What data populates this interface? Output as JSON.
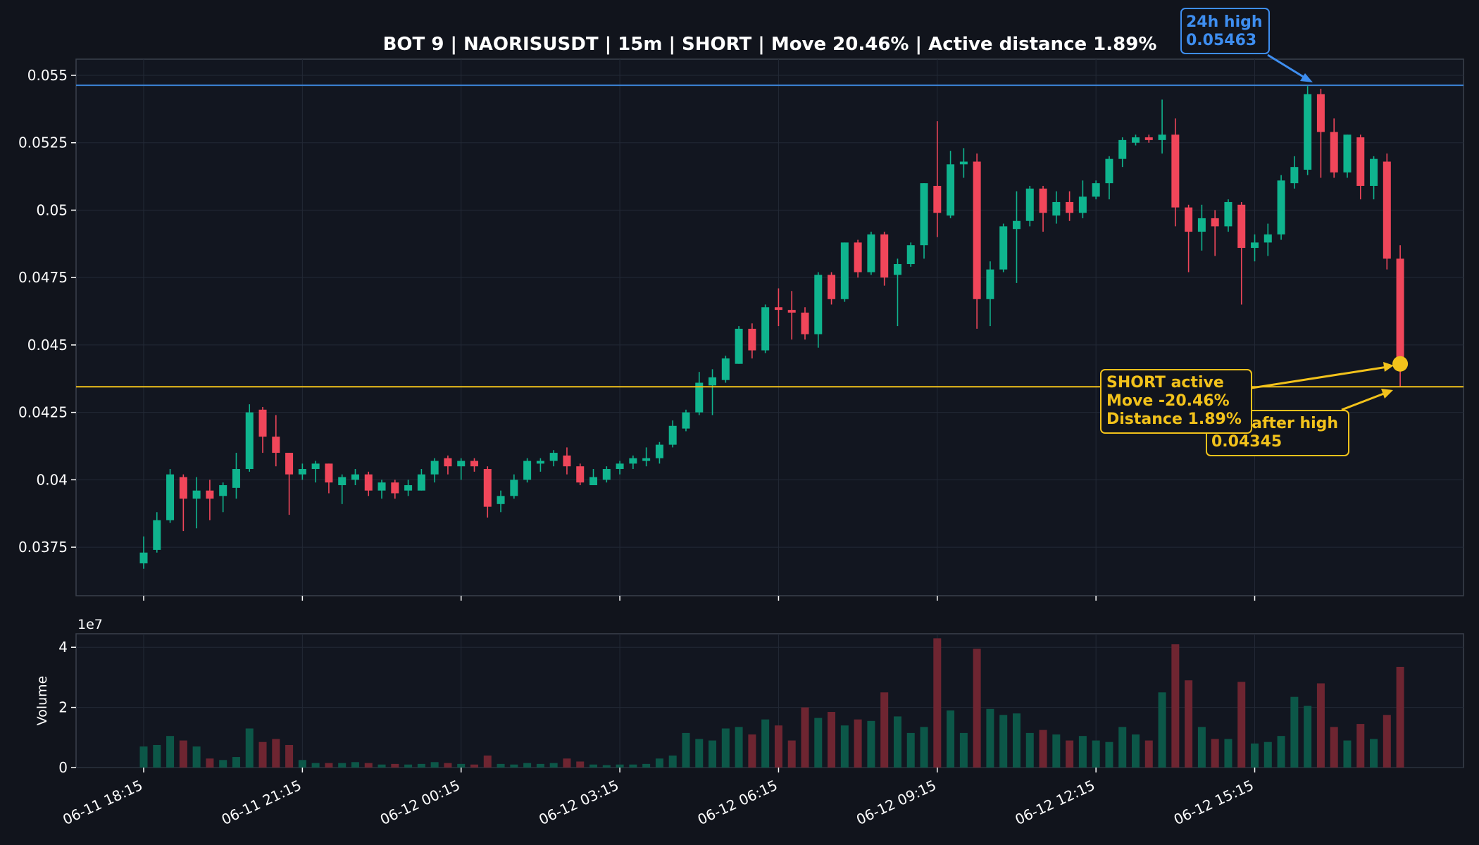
{
  "title": "BOT 9 | NAORISUSDT | 15m | SHORT | Move 20.46% | Active distance 1.89%",
  "colors": {
    "background": "#11141c",
    "plot_bg": "#121620",
    "grid": "#232936",
    "axis": "#3a404c",
    "text": "#ffffff",
    "bull": "#0fb48e",
    "bear": "#f0465a",
    "bull_volume": "#0c5748",
    "bear_volume": "#6e2531",
    "high_line": "#3b82d4",
    "high_text": "#3e8ef0",
    "active": "#f2c21b"
  },
  "annotations": {
    "high": {
      "line1": "24h high",
      "line2": "0.05463"
    },
    "low": {
      "line1": "Low after high",
      "line2": "0.04345"
    },
    "active": {
      "line1": "SHORT active",
      "line2": "Move -20.46%",
      "line3": "Distance 1.89%"
    }
  },
  "chart_data": {
    "type": "candlestick",
    "symbol": "NAORISUSDT",
    "interval": "15m",
    "y_ticks": [
      "0.0375",
      "0.04",
      "0.0425",
      "0.045",
      "0.0475",
      "0.05",
      "0.0525",
      "0.055"
    ],
    "ylim": [
      0.0357,
      0.0556
    ],
    "x_ticks": [
      "06-11 18:15",
      "06-11 21:15",
      "06-12 00:15",
      "06-12 03:15",
      "06-12 06:15",
      "06-12 09:15",
      "06-12 12:15",
      "06-12 15:15"
    ],
    "volume_ylabel": "Volume",
    "volume_scale_label": "1e7",
    "volume_ticks": [
      "0",
      "2",
      "4"
    ],
    "volume_ylim": [
      0,
      4.45
    ],
    "volume_unit": 10000000,
    "high_level": 0.05463,
    "low_after_high": 0.04345,
    "current_price": 0.0443,
    "candles": [
      [
        0.0369,
        0.0373,
        0.0379,
        0.0367,
        0.7
      ],
      [
        0.0374,
        0.0385,
        0.0388,
        0.0373,
        0.75
      ],
      [
        0.0385,
        0.0402,
        0.0404,
        0.0384,
        1.05
      ],
      [
        0.0401,
        0.0393,
        0.0402,
        0.0381,
        0.9
      ],
      [
        0.0393,
        0.0396,
        0.0401,
        0.0382,
        0.7
      ],
      [
        0.0396,
        0.0393,
        0.04,
        0.0385,
        0.3
      ],
      [
        0.0394,
        0.0398,
        0.0399,
        0.0388,
        0.25
      ],
      [
        0.0397,
        0.0404,
        0.041,
        0.0393,
        0.35
      ],
      [
        0.0404,
        0.0425,
        0.0428,
        0.0403,
        1.3
      ],
      [
        0.0426,
        0.0416,
        0.0427,
        0.041,
        0.85
      ],
      [
        0.0416,
        0.041,
        0.0424,
        0.0405,
        0.95
      ],
      [
        0.041,
        0.0402,
        0.041,
        0.0387,
        0.75
      ],
      [
        0.0402,
        0.0404,
        0.0406,
        0.04,
        0.25
      ],
      [
        0.0404,
        0.0406,
        0.0407,
        0.0399,
        0.15
      ],
      [
        0.0406,
        0.0399,
        0.0406,
        0.0395,
        0.15
      ],
      [
        0.0398,
        0.0401,
        0.0402,
        0.0391,
        0.15
      ],
      [
        0.04,
        0.0402,
        0.0404,
        0.0398,
        0.18
      ],
      [
        0.0402,
        0.0396,
        0.0403,
        0.0394,
        0.15
      ],
      [
        0.0396,
        0.0399,
        0.04,
        0.0393,
        0.1
      ],
      [
        0.0399,
        0.0395,
        0.04,
        0.0393,
        0.12
      ],
      [
        0.0396,
        0.0398,
        0.04,
        0.0394,
        0.1
      ],
      [
        0.0396,
        0.0402,
        0.0404,
        0.0396,
        0.12
      ],
      [
        0.0402,
        0.0407,
        0.0408,
        0.0399,
        0.18
      ],
      [
        0.0408,
        0.0405,
        0.0409,
        0.0402,
        0.15
      ],
      [
        0.0405,
        0.0407,
        0.0408,
        0.04,
        0.12
      ],
      [
        0.0407,
        0.0405,
        0.0408,
        0.0403,
        0.1
      ],
      [
        0.0404,
        0.039,
        0.0405,
        0.0386,
        0.4
      ],
      [
        0.0391,
        0.0394,
        0.0396,
        0.0388,
        0.12
      ],
      [
        0.0394,
        0.04,
        0.0402,
        0.0393,
        0.1
      ],
      [
        0.04,
        0.0407,
        0.0408,
        0.0399,
        0.15
      ],
      [
        0.0406,
        0.0407,
        0.0408,
        0.0403,
        0.12
      ],
      [
        0.0407,
        0.041,
        0.0411,
        0.0405,
        0.15
      ],
      [
        0.0409,
        0.0405,
        0.0412,
        0.0402,
        0.3
      ],
      [
        0.0405,
        0.0399,
        0.0406,
        0.0398,
        0.2
      ],
      [
        0.0398,
        0.0401,
        0.0404,
        0.0398,
        0.1
      ],
      [
        0.04,
        0.0404,
        0.0405,
        0.0399,
        0.08
      ],
      [
        0.0404,
        0.0406,
        0.0407,
        0.0402,
        0.1
      ],
      [
        0.0406,
        0.0408,
        0.0409,
        0.0404,
        0.1
      ],
      [
        0.0407,
        0.0408,
        0.0412,
        0.0405,
        0.12
      ],
      [
        0.0408,
        0.0413,
        0.0414,
        0.0406,
        0.3
      ],
      [
        0.0413,
        0.042,
        0.0422,
        0.0412,
        0.4
      ],
      [
        0.0419,
        0.0425,
        0.0426,
        0.0418,
        1.15
      ],
      [
        0.0425,
        0.0436,
        0.044,
        0.0424,
        0.95
      ],
      [
        0.0435,
        0.0438,
        0.0441,
        0.0424,
        0.9
      ],
      [
        0.0437,
        0.0445,
        0.0446,
        0.0436,
        1.3
      ],
      [
        0.0443,
        0.0456,
        0.0457,
        0.0443,
        1.35
      ],
      [
        0.0456,
        0.0448,
        0.0458,
        0.0445,
        1.1
      ],
      [
        0.0448,
        0.0464,
        0.0465,
        0.0447,
        1.6
      ],
      [
        0.0464,
        0.0463,
        0.0471,
        0.0457,
        1.4
      ],
      [
        0.0463,
        0.0462,
        0.047,
        0.0452,
        0.9
      ],
      [
        0.0462,
        0.0454,
        0.0464,
        0.0452,
        2.0
      ],
      [
        0.0454,
        0.0476,
        0.0477,
        0.0449,
        1.65
      ],
      [
        0.0476,
        0.0467,
        0.0477,
        0.0465,
        1.85
      ],
      [
        0.0467,
        0.0488,
        0.0488,
        0.0466,
        1.4
      ],
      [
        0.0488,
        0.0477,
        0.0489,
        0.0475,
        1.6
      ],
      [
        0.0477,
        0.0491,
        0.0492,
        0.0476,
        1.55
      ],
      [
        0.0491,
        0.0475,
        0.0492,
        0.0472,
        2.5
      ],
      [
        0.0476,
        0.048,
        0.0482,
        0.0457,
        1.7
      ],
      [
        0.048,
        0.0487,
        0.0488,
        0.0479,
        1.15
      ],
      [
        0.0487,
        0.051,
        0.051,
        0.0482,
        1.35
      ],
      [
        0.0509,
        0.0499,
        0.0533,
        0.049,
        4.3
      ],
      [
        0.0498,
        0.0517,
        0.0522,
        0.0497,
        1.9
      ],
      [
        0.0517,
        0.0518,
        0.0523,
        0.0512,
        1.15
      ],
      [
        0.0518,
        0.0467,
        0.0521,
        0.0456,
        3.95
      ],
      [
        0.0467,
        0.0478,
        0.0481,
        0.0457,
        1.95
      ],
      [
        0.0478,
        0.0494,
        0.0495,
        0.0477,
        1.75
      ],
      [
        0.0493,
        0.0496,
        0.0507,
        0.0473,
        1.8
      ],
      [
        0.0496,
        0.0508,
        0.0509,
        0.0494,
        1.15
      ],
      [
        0.0508,
        0.0499,
        0.0509,
        0.0492,
        1.25
      ],
      [
        0.0498,
        0.0503,
        0.0507,
        0.0495,
        1.1
      ],
      [
        0.0503,
        0.0499,
        0.0507,
        0.0496,
        0.9
      ],
      [
        0.0499,
        0.0505,
        0.0511,
        0.0497,
        1.05
      ],
      [
        0.0505,
        0.051,
        0.0511,
        0.0504,
        0.9
      ],
      [
        0.051,
        0.0519,
        0.052,
        0.0504,
        0.85
      ],
      [
        0.0519,
        0.0526,
        0.0527,
        0.0516,
        1.35
      ],
      [
        0.0525,
        0.0527,
        0.0528,
        0.0524,
        1.1
      ],
      [
        0.0527,
        0.0526,
        0.0528,
        0.0525,
        0.9
      ],
      [
        0.0526,
        0.0528,
        0.0541,
        0.0521,
        2.5
      ],
      [
        0.0528,
        0.0501,
        0.0534,
        0.0494,
        4.1
      ],
      [
        0.0501,
        0.0492,
        0.0502,
        0.0477,
        2.9
      ],
      [
        0.0492,
        0.0497,
        0.0502,
        0.0485,
        1.35
      ],
      [
        0.0497,
        0.0494,
        0.05,
        0.0483,
        0.95
      ],
      [
        0.0494,
        0.0503,
        0.0504,
        0.0492,
        0.95
      ],
      [
        0.0502,
        0.0486,
        0.0503,
        0.0465,
        2.85
      ],
      [
        0.0486,
        0.0488,
        0.0491,
        0.0481,
        0.8
      ],
      [
        0.0488,
        0.0491,
        0.0495,
        0.0483,
        0.85
      ],
      [
        0.0491,
        0.0511,
        0.0513,
        0.0489,
        1.05
      ],
      [
        0.051,
        0.0516,
        0.052,
        0.0508,
        2.35
      ],
      [
        0.0515,
        0.0543,
        0.0546,
        0.0513,
        2.05
      ],
      [
        0.0543,
        0.0529,
        0.0545,
        0.0512,
        2.8
      ],
      [
        0.0529,
        0.0514,
        0.0534,
        0.0512,
        1.35
      ],
      [
        0.0514,
        0.0528,
        0.0528,
        0.0512,
        0.9
      ],
      [
        0.0527,
        0.0509,
        0.0528,
        0.0504,
        1.45
      ],
      [
        0.0509,
        0.0519,
        0.052,
        0.0504,
        0.95
      ],
      [
        0.0518,
        0.0482,
        0.0521,
        0.0478,
        1.75
      ],
      [
        0.0482,
        0.0443,
        0.0487,
        0.04345,
        3.35
      ]
    ]
  }
}
